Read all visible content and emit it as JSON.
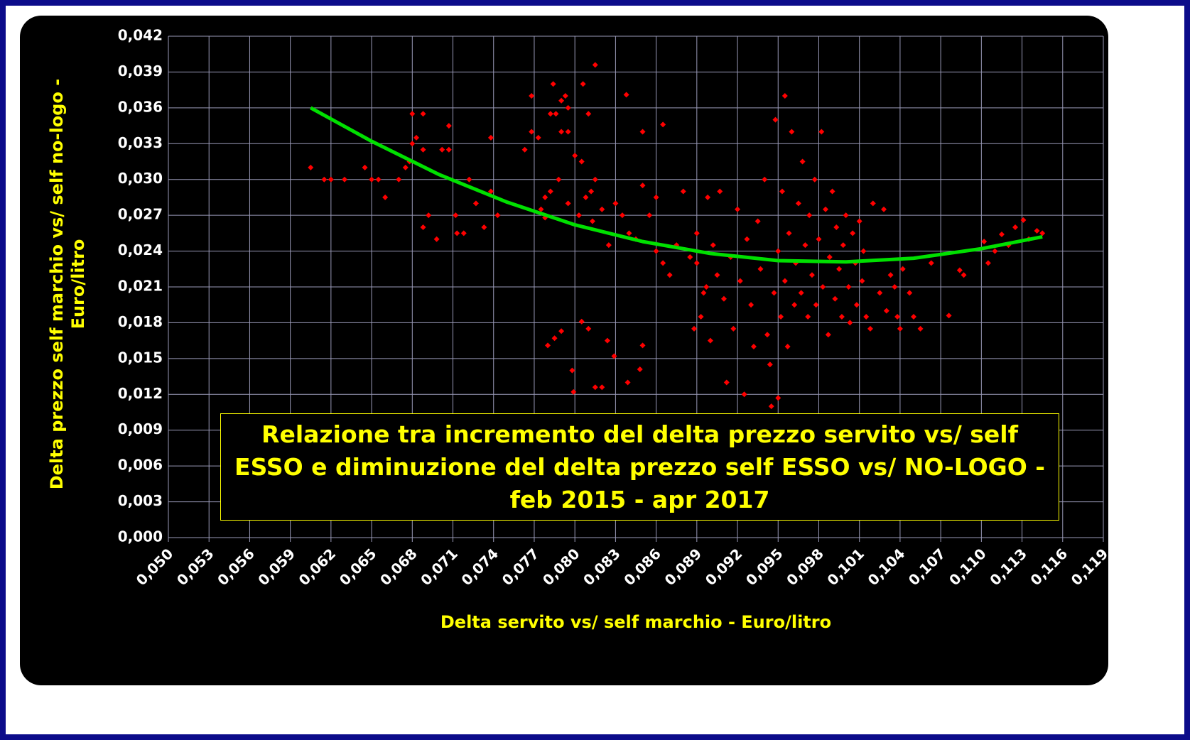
{
  "chart_data": {
    "type": "scatter",
    "title": "Relazione tra incremento del delta prezzo servito vs/ self ESSO e diminuzione del delta prezzo self ESSO vs/ NO-LOGO - feb 2015 - apr 2017",
    "x_label": "Delta servito vs/ self marchio - Euro/litro",
    "y_label": "Delta prezzo self marchio vs/ self no-logo - Euro/litro",
    "color": "#ff0000",
    "trend_color": "#00e000",
    "grid": true,
    "xlim": [
      0.05,
      0.119
    ],
    "ylim": [
      0,
      0.042
    ],
    "xticks": [
      {
        "value": 0.05,
        "label": "0,050"
      },
      {
        "value": 0.053,
        "label": "0,053"
      },
      {
        "value": 0.056,
        "label": "0,056"
      },
      {
        "value": 0.059,
        "label": "0,059"
      },
      {
        "value": 0.062,
        "label": "0,062"
      },
      {
        "value": 0.065,
        "label": "0,065"
      },
      {
        "value": 0.068,
        "label": "0,068"
      },
      {
        "value": 0.071,
        "label": "0,071"
      },
      {
        "value": 0.074,
        "label": "0,074"
      },
      {
        "value": 0.077,
        "label": "0,077"
      },
      {
        "value": 0.08,
        "label": "0,080"
      },
      {
        "value": 0.083,
        "label": "0,083"
      },
      {
        "value": 0.086,
        "label": "0,086"
      },
      {
        "value": 0.089,
        "label": "0,089"
      },
      {
        "value": 0.092,
        "label": "0,092"
      },
      {
        "value": 0.095,
        "label": "0,095"
      },
      {
        "value": 0.098,
        "label": "0,098"
      },
      {
        "value": 0.101,
        "label": "0,101"
      },
      {
        "value": 0.104,
        "label": "0,104"
      },
      {
        "value": 0.107,
        "label": "0,107"
      },
      {
        "value": 0.11,
        "label": "0,110"
      },
      {
        "value": 0.113,
        "label": "0,113"
      },
      {
        "value": 0.116,
        "label": "0,116"
      },
      {
        "value": 0.119,
        "label": "0,119"
      }
    ],
    "yticks": [
      {
        "value": 0,
        "label": "0,000"
      },
      {
        "value": 0.003,
        "label": "0,003"
      },
      {
        "value": 0.006,
        "label": "0,006"
      },
      {
        "value": 0.009,
        "label": "0,009"
      },
      {
        "value": 0.012,
        "label": "0,012"
      },
      {
        "value": 0.015,
        "label": "0,015"
      },
      {
        "value": 0.018,
        "label": "0,018"
      },
      {
        "value": 0.021,
        "label": "0,021"
      },
      {
        "value": 0.024,
        "label": "0,024"
      },
      {
        "value": 0.027,
        "label": "0,027"
      },
      {
        "value": 0.03,
        "label": "0,030"
      },
      {
        "value": 0.033,
        "label": "0,033"
      },
      {
        "value": 0.036,
        "label": "0,036"
      },
      {
        "value": 0.039,
        "label": "0,039"
      },
      {
        "value": 0.042,
        "label": "0,042"
      }
    ],
    "x": [
      0.0605,
      0.0615,
      0.062,
      0.063,
      0.0645,
      0.065,
      0.0655,
      0.066,
      0.067,
      0.0675,
      0.0678,
      0.068,
      0.068,
      0.0683,
      0.0688,
      0.0688,
      0.0688,
      0.0692,
      0.0698,
      0.0702,
      0.0707,
      0.0707,
      0.0712,
      0.0713,
      0.0718,
      0.0722,
      0.0727,
      0.0733,
      0.0738,
      0.0738,
      0.0743,
      0.0763,
      0.0768,
      0.0768,
      0.0773,
      0.0778,
      0.0782,
      0.0786,
      0.0788,
      0.0793,
      0.0795,
      0.0795,
      0.0803,
      0.0808,
      0.0812,
      0.0813,
      0.0784,
      0.079,
      0.079,
      0.0795,
      0.0806,
      0.081,
      0.0815,
      0.0838,
      0.085,
      0.0865,
      0.0798,
      0.0799,
      0.0805,
      0.081,
      0.0815,
      0.082,
      0.0824,
      0.0829,
      0.0839,
      0.0848,
      0.085,
      0.078,
      0.0785,
      0.079,
      0.0775,
      0.0778,
      0.0782,
      0.08,
      0.0805,
      0.0815,
      0.082,
      0.0825,
      0.083,
      0.0835,
      0.084,
      0.0845,
      0.085,
      0.0855,
      0.086,
      0.086,
      0.0865,
      0.087,
      0.0875,
      0.088,
      0.0885,
      0.0888,
      0.089,
      0.0895,
      0.0898,
      0.089,
      0.0893,
      0.0897,
      0.09,
      0.0902,
      0.0905,
      0.0907,
      0.091,
      0.0912,
      0.0915,
      0.0917,
      0.092,
      0.0922,
      0.0925,
      0.0927,
      0.093,
      0.0932,
      0.0935,
      0.0937,
      0.094,
      0.0942,
      0.0944,
      0.0945,
      0.0947,
      0.0948,
      0.095,
      0.095,
      0.0952,
      0.0953,
      0.0955,
      0.0955,
      0.0957,
      0.0958,
      0.096,
      0.0962,
      0.0963,
      0.0965,
      0.0967,
      0.0968,
      0.097,
      0.0972,
      0.0973,
      0.0975,
      0.0977,
      0.0978,
      0.098,
      0.0982,
      0.0983,
      0.0985,
      0.0987,
      0.0988,
      0.099,
      0.0992,
      0.0993,
      0.0995,
      0.0997,
      0.0998,
      0.1,
      0.1002,
      0.1003,
      0.1005,
      0.1007,
      0.1008,
      0.101,
      0.1012,
      0.1013,
      0.1015,
      0.1018,
      0.102,
      0.1025,
      0.1028,
      0.103,
      0.1033,
      0.1036,
      0.1038,
      0.104,
      0.1042,
      0.1047,
      0.105,
      0.1055,
      0.1063,
      0.1076,
      0.1084,
      0.1087,
      0.1102,
      0.1105,
      0.111,
      0.1115,
      0.112,
      0.1125,
      0.1131,
      0.1135,
      0.1141,
      0.1145
    ],
    "values": [
      0.031,
      0.03,
      0.03,
      0.03,
      0.031,
      0.03,
      0.03,
      0.0285,
      0.03,
      0.031,
      0.0315,
      0.033,
      0.0355,
      0.0335,
      0.0355,
      0.0325,
      0.026,
      0.027,
      0.025,
      0.0325,
      0.0345,
      0.0325,
      0.027,
      0.0255,
      0.0255,
      0.03,
      0.028,
      0.026,
      0.0335,
      0.029,
      0.027,
      0.0325,
      0.037,
      0.034,
      0.0335,
      0.0285,
      0.0355,
      0.0355,
      0.03,
      0.037,
      0.036,
      0.028,
      0.027,
      0.0285,
      0.029,
      0.0265,
      0.038,
      0.0366,
      0.034,
      0.034,
      0.038,
      0.0355,
      0.0396,
      0.0371,
      0.034,
      0.0346,
      0.014,
      0.0122,
      0.0181,
      0.0175,
      0.0126,
      0.0126,
      0.0165,
      0.0152,
      0.013,
      0.0141,
      0.0161,
      0.0161,
      0.0167,
      0.0173,
      0.0275,
      0.0268,
      0.029,
      0.032,
      0.0315,
      0.03,
      0.0275,
      0.0245,
      0.028,
      0.027,
      0.0255,
      0.025,
      0.0295,
      0.027,
      0.024,
      0.0285,
      0.023,
      0.022,
      0.0245,
      0.029,
      0.0235,
      0.0175,
      0.0255,
      0.0205,
      0.0285,
      0.023,
      0.0185,
      0.021,
      0.0165,
      0.0245,
      0.022,
      0.029,
      0.02,
      0.013,
      0.0235,
      0.0175,
      0.0275,
      0.0215,
      0.012,
      0.025,
      0.0195,
      0.016,
      0.0265,
      0.0225,
      0.03,
      0.017,
      0.0145,
      0.011,
      0.0205,
      0.035,
      0.024,
      0.0117,
      0.0185,
      0.029,
      0.037,
      0.0215,
      0.016,
      0.0255,
      0.034,
      0.0195,
      0.023,
      0.028,
      0.0205,
      0.0315,
      0.0245,
      0.0185,
      0.027,
      0.022,
      0.03,
      0.0195,
      0.025,
      0.034,
      0.021,
      0.0275,
      0.017,
      0.0235,
      0.029,
      0.02,
      0.026,
      0.0225,
      0.0185,
      0.0245,
      0.027,
      0.021,
      0.018,
      0.0255,
      0.023,
      0.0195,
      0.0265,
      0.0215,
      0.024,
      0.0185,
      0.0175,
      0.028,
      0.0205,
      0.0275,
      0.019,
      0.022,
      0.021,
      0.0185,
      0.0175,
      0.0225,
      0.0205,
      0.0185,
      0.0175,
      0.023,
      0.0186,
      0.0224,
      0.022,
      0.0248,
      0.023,
      0.024,
      0.0254,
      0.0245,
      0.026,
      0.0266,
      0.025,
      0.0257,
      0.0255
    ],
    "trend_x": [
      0.0605,
      0.065,
      0.07,
      0.075,
      0.08,
      0.085,
      0.09,
      0.095,
      0.1,
      0.105,
      0.11,
      0.1145
    ],
    "trend_values": [
      0.036,
      0.0332,
      0.0304,
      0.0281,
      0.0262,
      0.0248,
      0.0238,
      0.0232,
      0.0231,
      0.0234,
      0.0242,
      0.0252
    ]
  }
}
